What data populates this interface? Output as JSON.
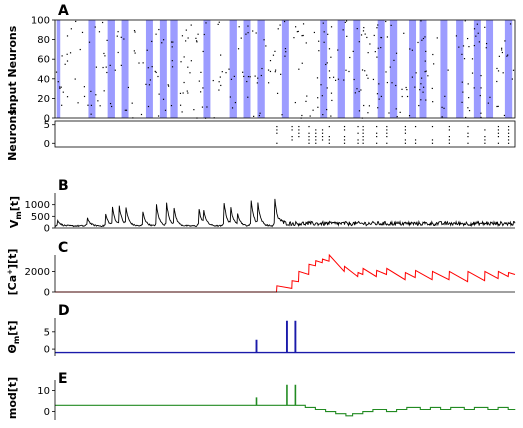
{
  "panels": [
    {
      "letter": "A",
      "ylabel": "Input Neurons",
      "yticks": [
        "0",
        "20",
        "40",
        "60",
        "80",
        "100"
      ],
      "ylim": [
        0,
        100
      ]
    },
    {
      "ylabel": "Neurons",
      "yticks": [
        "0",
        "5"
      ],
      "ylim": [
        -1,
        6
      ]
    },
    {
      "letter": "B",
      "ylabel": "V_m[t]",
      "yticks": [
        "0",
        "500",
        "1000"
      ],
      "ylim": [
        0,
        1500
      ]
    },
    {
      "letter": "C",
      "ylabel": "[Ca+][t]",
      "yticks": [
        "0",
        "2000"
      ],
      "ylim": [
        0,
        3600
      ]
    },
    {
      "letter": "D",
      "ylabel": "Θ_m[t]",
      "yticks": [
        "0",
        "5"
      ],
      "ylim": [
        -2,
        9
      ]
    },
    {
      "letter": "E",
      "ylabel": "mod[t]",
      "yticks": [
        "0",
        "10"
      ],
      "ylim": [
        -4,
        15
      ]
    }
  ],
  "chart_data": [
    {
      "type": "scatter",
      "panel": "A",
      "description_series": "input spike raster with stimulus bands",
      "ylabel": "Input Neurons",
      "ylim": [
        0,
        100
      ],
      "x_range": [
        0,
        1000
      ],
      "stimulus_bands": [
        [
          5,
          15
        ],
        [
          96,
          116
        ],
        [
          151,
          172
        ],
        [
          191,
          211
        ],
        [
          261,
          281
        ],
        [
          301,
          321
        ],
        [
          331,
          352
        ],
        [
          426,
          446
        ],
        [
          501,
          522
        ],
        [
          541,
          561
        ],
        [
          581,
          602
        ],
        [
          651,
          671
        ],
        [
          761,
          781
        ],
        [
          811,
          832
        ],
        [
          856,
          876
        ],
        [
          926,
          946
        ],
        [
          961,
          982
        ],
        [
          1016,
          1036
        ],
        [
          1046,
          1066
        ],
        [
          1106,
          1126
        ],
        [
          1151,
          1172
        ],
        [
          1202,
          1222
        ],
        [
          1237,
          1257
        ],
        [
          1291,
          1312
        ]
      ],
      "band_color": "#7b7bff",
      "dot_color": "#000000"
    },
    {
      "type": "scatter",
      "panel": "A-output",
      "ylabel": "Neurons",
      "ylim": [
        -1,
        6
      ],
      "spike_times": [
        656,
        701,
        721,
        751,
        771,
        791,
        811,
        856,
        896,
        911,
        951,
        981,
        1036,
        1066,
        1116,
        1166,
        1221,
        1271,
        1311,
        1341
      ],
      "dot_color": "#000000"
    },
    {
      "type": "line",
      "panel": "B",
      "ylabel": "V_m[t]",
      "ylim": [
        0,
        1500
      ],
      "series": [
        {
          "color": "#000000"
        }
      ],
      "spike_events": [
        {
          "t": 8,
          "v": 350
        },
        {
          "t": 95,
          "v": 500
        },
        {
          "t": 150,
          "v": 600
        },
        {
          "t": 170,
          "v": 850
        },
        {
          "t": 190,
          "v": 900
        },
        {
          "t": 210,
          "v": 820
        },
        {
          "t": 260,
          "v": 700
        },
        {
          "t": 300,
          "v": 1000
        },
        {
          "t": 330,
          "v": 1050
        },
        {
          "t": 352,
          "v": 800
        },
        {
          "t": 425,
          "v": 900
        },
        {
          "t": 440,
          "v": 650
        },
        {
          "t": 500,
          "v": 1100
        },
        {
          "t": 520,
          "v": 800
        },
        {
          "t": 540,
          "v": 600
        },
        {
          "t": 580,
          "v": 1200
        },
        {
          "t": 600,
          "v": 1000
        },
        {
          "t": 650,
          "v": 1250
        }
      ],
      "baseline_after_spike": 180
    },
    {
      "type": "line",
      "panel": "C",
      "ylabel": "[Ca+][t]",
      "ylim": [
        0,
        3600
      ],
      "series": [
        {
          "color": "#ff0000"
        }
      ],
      "values": [
        [
          0,
          0
        ],
        [
          655,
          0
        ],
        [
          656,
          600
        ],
        [
          700,
          350
        ],
        [
          701,
          1100
        ],
        [
          720,
          1000
        ],
        [
          721,
          2000
        ],
        [
          750,
          1700
        ],
        [
          751,
          2700
        ],
        [
          770,
          2550
        ],
        [
          771,
          3050
        ],
        [
          790,
          2850
        ],
        [
          791,
          3200
        ],
        [
          810,
          3000
        ],
        [
          811,
          3600
        ],
        [
          855,
          2000
        ],
        [
          856,
          2500
        ],
        [
          895,
          1500
        ],
        [
          896,
          1900
        ],
        [
          910,
          1700
        ],
        [
          911,
          2300
        ],
        [
          950,
          1500
        ],
        [
          951,
          2100
        ],
        [
          980,
          1700
        ],
        [
          981,
          2300
        ],
        [
          1035,
          1200
        ],
        [
          1036,
          1900
        ],
        [
          1065,
          1400
        ],
        [
          1066,
          2100
        ],
        [
          1115,
          1200
        ],
        [
          1116,
          2000
        ],
        [
          1165,
          1200
        ],
        [
          1166,
          2000
        ],
        [
          1220,
          1000
        ],
        [
          1221,
          2000
        ],
        [
          1270,
          1100
        ],
        [
          1271,
          2000
        ],
        [
          1310,
          1300
        ],
        [
          1311,
          2000
        ],
        [
          1340,
          1500
        ],
        [
          1341,
          1900
        ],
        [
          1360,
          1700
        ]
      ]
    },
    {
      "type": "line",
      "panel": "D",
      "ylabel": "Θ_m[t]",
      "ylim": [
        -2,
        9
      ],
      "series": [
        {
          "color": "#1a1aaa"
        }
      ],
      "baseline": -1,
      "pulses": [
        {
          "t": 595,
          "h": 2.5
        },
        {
          "t": 685,
          "h": 8
        },
        {
          "t": 710,
          "h": 8
        }
      ]
    },
    {
      "type": "line",
      "panel": "E",
      "ylabel": "mod[t]",
      "ylim": [
        -4,
        15
      ],
      "series": [
        {
          "color": "#228b22"
        }
      ],
      "baseline": 3,
      "pulses": [
        {
          "t": 595,
          "h": 6.5
        },
        {
          "t": 685,
          "h": 12.5
        },
        {
          "t": 710,
          "h": 12.5
        }
      ],
      "steps": [
        [
          0,
          3
        ],
        [
          720,
          3
        ],
        [
          740,
          2
        ],
        [
          770,
          1
        ],
        [
          800,
          0
        ],
        [
          830,
          -1
        ],
        [
          860,
          -2
        ],
        [
          880,
          -1
        ],
        [
          910,
          0
        ],
        [
          940,
          1
        ],
        [
          980,
          0
        ],
        [
          1010,
          1
        ],
        [
          1040,
          2
        ],
        [
          1080,
          1
        ],
        [
          1110,
          2
        ],
        [
          1140,
          1
        ],
        [
          1170,
          2
        ],
        [
          1210,
          1
        ],
        [
          1240,
          2
        ],
        [
          1280,
          1
        ],
        [
          1310,
          2
        ],
        [
          1340,
          1
        ],
        [
          1360,
          1
        ]
      ]
    }
  ]
}
